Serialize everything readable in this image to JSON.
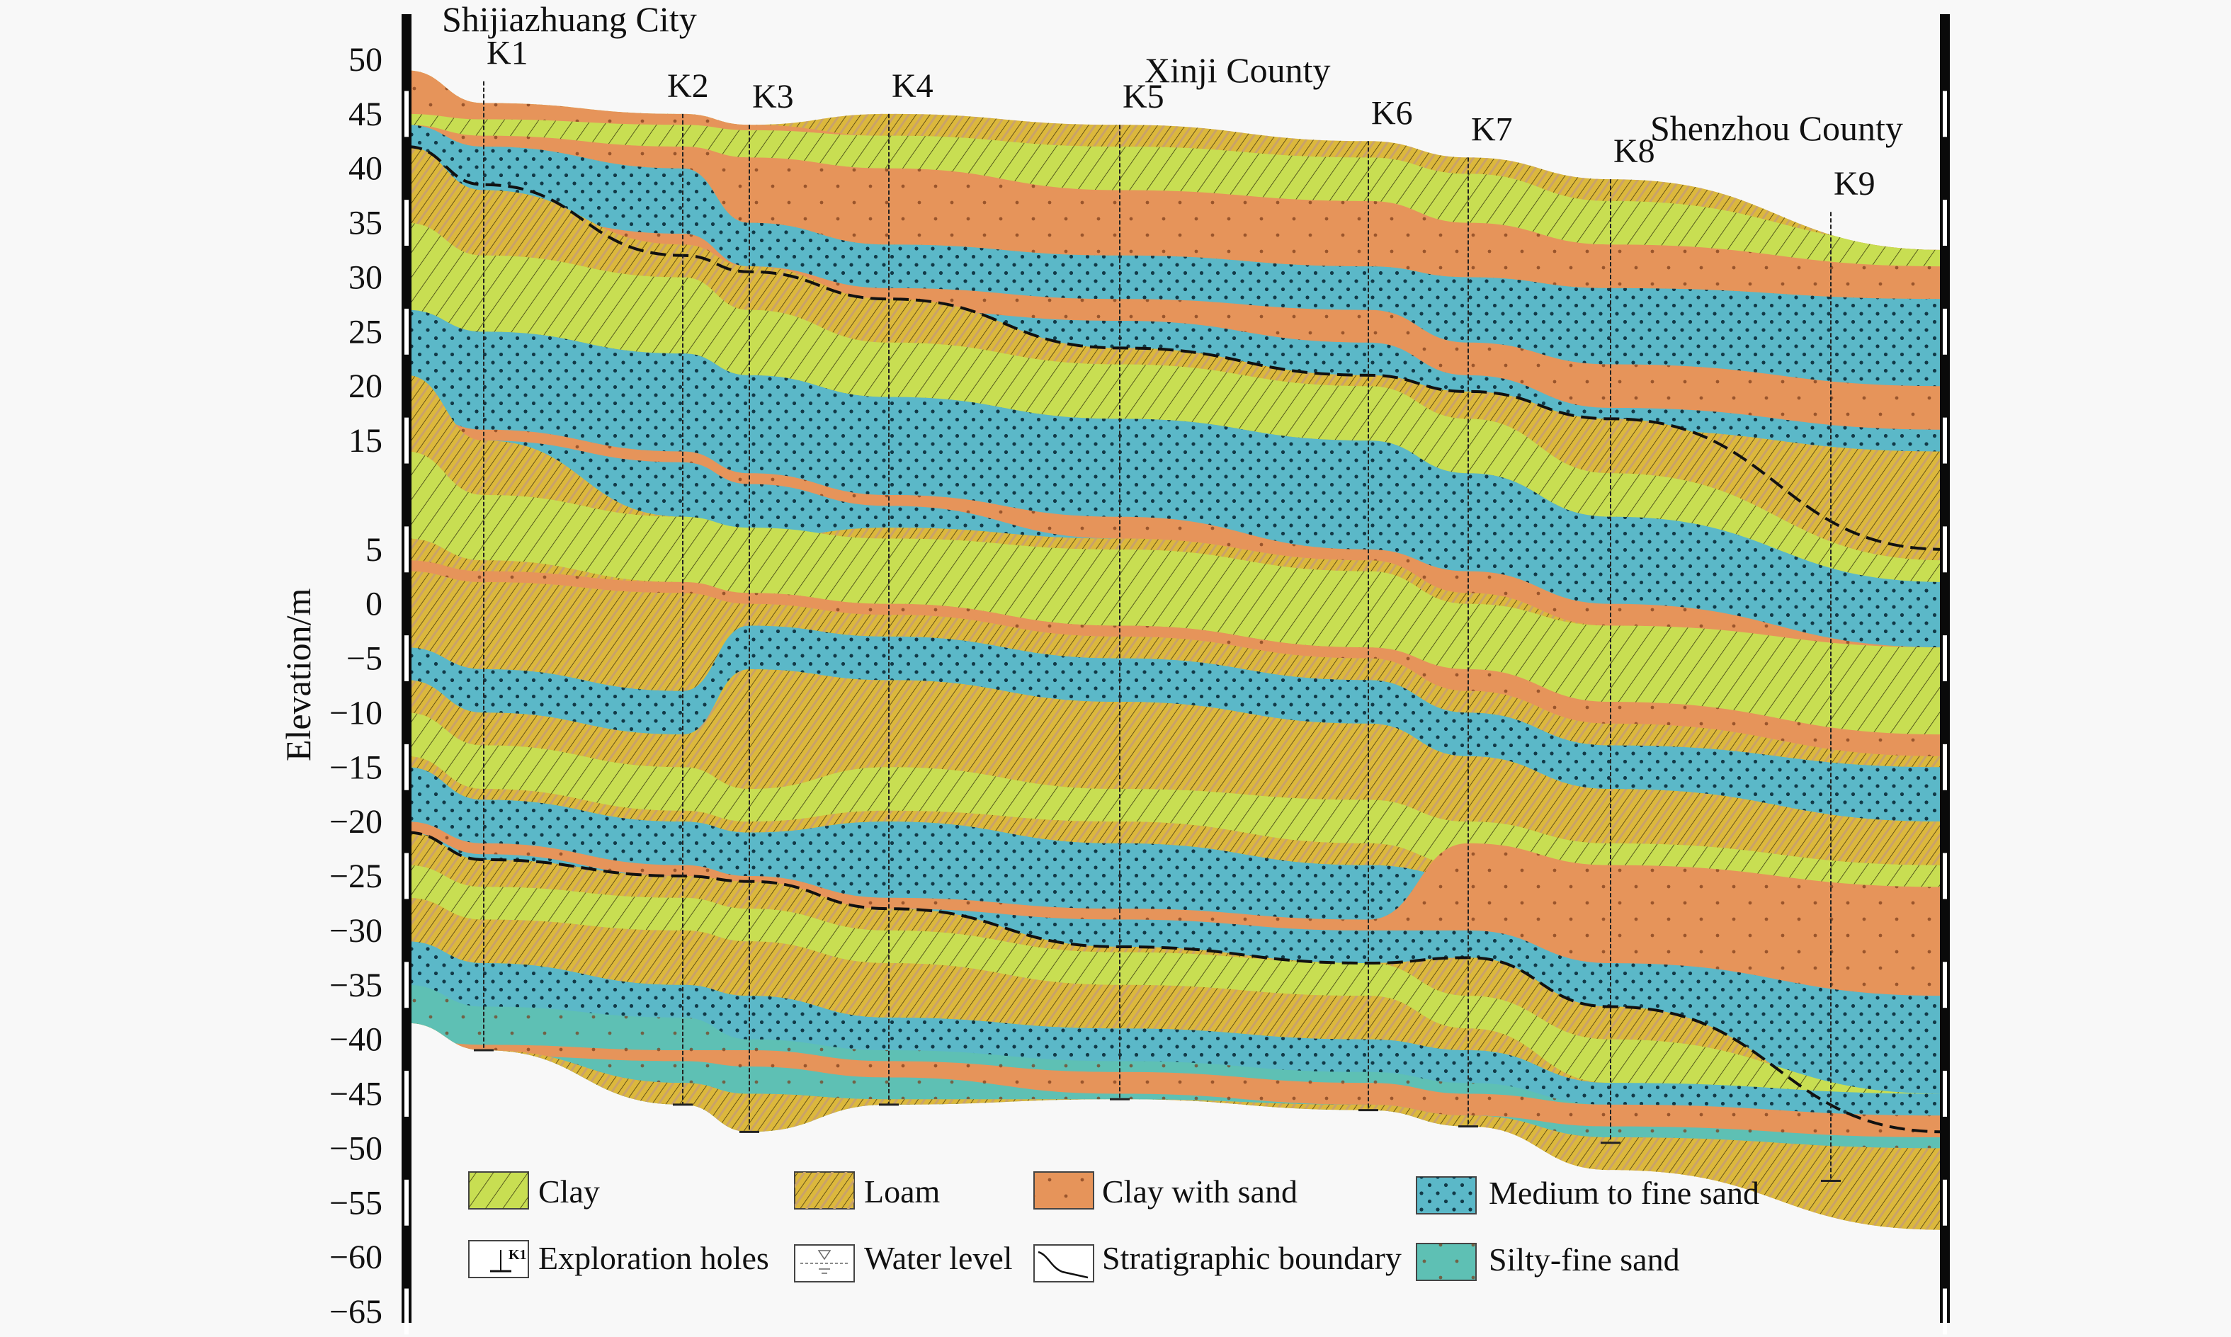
{
  "chart_data": {
    "type": "geological-cross-section",
    "title": "",
    "ylabel": "Elevation/m",
    "ylim": [
      -65,
      50
    ],
    "yticks": [
      50,
      45,
      40,
      35,
      30,
      25,
      20,
      15,
      5,
      0,
      -5,
      -10,
      -15,
      -20,
      -25,
      -30,
      -35,
      -40,
      -45,
      -50,
      -55,
      -60,
      -65
    ],
    "ytick_labels": [
      "50",
      "45",
      "40",
      "35",
      "30",
      "25",
      "20",
      "15",
      "5",
      "0",
      "−5",
      "−10",
      "−15",
      "−20",
      "−25",
      "−30",
      "−35",
      "−40",
      "−45",
      "−50",
      "−55",
      "−60",
      "−65"
    ],
    "places": [
      {
        "name": "Shijiazhuang City",
        "near": "K1"
      },
      {
        "name": "Xinji County",
        "near": "K5"
      },
      {
        "name": "Shenzhou County",
        "near": "K9"
      }
    ],
    "boreholes": [
      {
        "id": "K1",
        "top_m": 48,
        "bottom_m": -41
      },
      {
        "id": "K2",
        "top_m": 45,
        "bottom_m": -46
      },
      {
        "id": "K3",
        "top_m": 44,
        "bottom_m": -48.5
      },
      {
        "id": "K4",
        "top_m": 45,
        "bottom_m": -46
      },
      {
        "id": "K5",
        "top_m": 44,
        "bottom_m": -45.5
      },
      {
        "id": "K6",
        "top_m": 42.5,
        "bottom_m": -46.5
      },
      {
        "id": "K7",
        "top_m": 41,
        "bottom_m": -48
      },
      {
        "id": "K8",
        "top_m": 39,
        "bottom_m": -49.5
      },
      {
        "id": "K9",
        "top_m": 36,
        "bottom_m": -53
      }
    ],
    "ground_surface_m": {
      "left": 49,
      "right": 32.5
    },
    "base_m": {
      "left": -38.5,
      "right": -57.5
    },
    "stratigraphic_boundaries": [
      {
        "name": "upper",
        "elev_at_holes_m": [
          38.5,
          32,
          30.5,
          28,
          23.5,
          21,
          19.5,
          17,
          8
        ],
        "left_m": 42,
        "right_m": 5
      },
      {
        "name": "lower",
        "elev_at_holes_m": [
          -23.5,
          -25,
          -25.5,
          -28,
          -31.5,
          -33,
          -32.5,
          -37,
          -46
        ],
        "left_m": -21,
        "right_m": -48.5
      }
    ],
    "legend": [
      {
        "key": "clay",
        "label": "Clay",
        "color": "#c8de52",
        "pattern": "hatch"
      },
      {
        "key": "loam",
        "label": "Loam",
        "color": "#dcb83c",
        "pattern": "hatch-dense"
      },
      {
        "key": "clay_sand",
        "label": "Clay with sand",
        "color": "#e6945a",
        "pattern": "sparse-dots"
      },
      {
        "key": "med_sand",
        "label": "Medium to fine sand",
        "color": "#5bb8c8",
        "pattern": "dots"
      },
      {
        "key": "exploration",
        "label": "Exploration holes",
        "symbol": "K1"
      },
      {
        "key": "water",
        "label": "Water level",
        "symbol": "water-level"
      },
      {
        "key": "boundary",
        "label": "Stratigraphic boundary",
        "symbol": "line"
      },
      {
        "key": "silty_sand",
        "label": "Silty-fine sand",
        "color": "#5ec0b4",
        "pattern": "sparse-dots"
      }
    ],
    "layers": [
      {
        "type": "clay_sand",
        "top": [
          49,
          46,
          45,
          44,
          43,
          41.5,
          40,
          38,
          35.5,
          33
        ],
        "bottom": [
          44,
          42,
          40,
          35,
          33,
          32,
          31,
          30,
          29,
          28
        ]
      },
      {
        "type": "clay",
        "top": [
          45,
          44.5,
          44,
          43.5,
          43,
          42,
          41,
          39.5,
          37,
          33
        ],
        "bottom": [
          44,
          43,
          42,
          41,
          40,
          38,
          37,
          35,
          33,
          31
        ]
      },
      {
        "type": "med_sand",
        "top": [
          44,
          42,
          40,
          35,
          33,
          32,
          31,
          30,
          29,
          28
        ],
        "bottom": [
          31,
          28,
          25,
          22,
          21,
          20,
          19.5,
          18,
          16,
          14
        ]
      },
      {
        "type": "clay_sand",
        "top": [
          38,
          36,
          34,
          31,
          29,
          28,
          27,
          24,
          22,
          20
        ],
        "bottom": [
          36,
          34,
          31,
          28,
          27,
          26,
          24,
          21,
          18,
          16
        ]
      },
      {
        "type": "loam",
        "top": [
          42,
          38,
          33,
          31,
          28,
          23.5,
          21,
          19.5,
          17,
          5
        ],
        "bottom": [
          30,
          28,
          26,
          24,
          21,
          20,
          18,
          15,
          10,
          2
        ]
      },
      {
        "type": "clay",
        "top": [
          35,
          32,
          30,
          27,
          24,
          22,
          20,
          17,
          12,
          4
        ],
        "bottom": [
          27,
          25,
          23,
          21,
          19,
          17,
          15,
          12,
          8,
          0
        ]
      },
      {
        "type": "med_sand",
        "top": [
          27,
          25,
          23,
          21,
          19,
          17,
          15,
          12,
          8,
          2
        ],
        "bottom": [
          21,
          15,
          8,
          5,
          6,
          5,
          2,
          0,
          -3,
          -8
        ]
      },
      {
        "type": "clay_sand",
        "top": [
          18,
          16,
          14,
          12,
          10,
          8,
          5,
          3,
          0,
          -4
        ],
        "bottom": [
          17,
          15,
          13,
          11,
          9,
          6,
          3,
          0,
          -3,
          -7
        ]
      },
      {
        "type": "loam",
        "top": [
          21,
          15,
          8,
          6,
          7,
          6,
          4,
          1,
          -2,
          -8
        ],
        "bottom": [
          5,
          2,
          0,
          -3,
          -5,
          -6,
          -8,
          -10,
          -12,
          -15
        ]
      },
      {
        "type": "clay",
        "top": [
          14,
          10,
          8,
          7,
          6,
          5,
          3,
          0,
          -2,
          -4
        ],
        "bottom": [
          6,
          4,
          2,
          1,
          0,
          -2,
          -4,
          -7,
          -10,
          -13
        ]
      },
      {
        "type": "clay_sand",
        "top": [
          4,
          3,
          2,
          1,
          0,
          -2,
          -4,
          -6,
          -9,
          -12
        ],
        "bottom": [
          3,
          2,
          1,
          0,
          -1,
          -3,
          -5,
          -8,
          -11,
          -14
        ]
      },
      {
        "type": "med_sand",
        "top": [
          -4,
          -6,
          -8,
          -2,
          -3,
          -5,
          -7,
          -10,
          -13,
          -15
        ],
        "bottom": [
          -7,
          -10,
          -12,
          -6,
          -7,
          -9,
          -11,
          -14,
          -17,
          -20
        ]
      },
      {
        "type": "loam",
        "top": [
          -7,
          -10,
          -12,
          -14,
          -10,
          -12,
          -14,
          -16,
          -18,
          -20
        ],
        "bottom": [
          -15,
          -18,
          -20,
          -21,
          -20,
          -22,
          -24,
          -25,
          -27,
          -29
        ]
      },
      {
        "type": "clay",
        "top": [
          -10,
          -13,
          -15,
          -17,
          -15,
          -17,
          -18,
          -20,
          -22,
          -24
        ],
        "bottom": [
          -14,
          -17,
          -19,
          -20,
          -19,
          -20,
          -22,
          -24,
          -26,
          -28
        ]
      },
      {
        "type": "med_sand",
        "top": [
          -15,
          -18,
          -20,
          -21,
          -20,
          -22,
          -24,
          -25,
          -27,
          -29
        ],
        "bottom": [
          -21,
          -23.5,
          -25,
          -25.5,
          -28,
          -31.5,
          -33,
          -32.5,
          -37,
          -48.5
        ]
      },
      {
        "type": "clay_sand",
        "top": [
          -20,
          -22,
          -24,
          -25,
          -27,
          -28,
          -29,
          -22,
          -24,
          -26
        ],
        "bottom": [
          -21,
          -23,
          -25,
          -26,
          -28,
          -29,
          -30,
          -30,
          -33,
          -36
        ]
      },
      {
        "type": "loam",
        "top": [
          -21,
          -23.5,
          -25,
          -25.5,
          -28,
          -31.5,
          -33,
          -32.5,
          -37,
          -48.5
        ],
        "bottom": [
          -31,
          -33,
          -35,
          -36,
          -38,
          -39,
          -40,
          -41,
          -44,
          -57.5
        ]
      },
      {
        "type": "clay",
        "top": [
          -24,
          -26,
          -27,
          -28,
          -30,
          -32,
          -33,
          -36,
          -40,
          -45
        ],
        "bottom": [
          -27,
          -29,
          -30,
          -31,
          -33,
          -35,
          -36,
          -39,
          -44,
          -50
        ]
      },
      {
        "type": "med_sand",
        "top": [
          -31,
          -33,
          -35,
          -36,
          -38,
          -39,
          -40,
          -41,
          -44,
          -45
        ],
        "bottom": [
          -38.5,
          -43,
          -46.5,
          -48.5,
          -46,
          -45.5,
          -46.5,
          -48,
          -50,
          -51
        ]
      },
      {
        "type": "silty_sand",
        "top": [
          -35,
          -37,
          -38,
          -40,
          -41,
          -42,
          -43,
          -44,
          -46,
          -47
        ],
        "bottom": [
          -38.5,
          -41,
          -44,
          -45,
          -45.5,
          -45.5,
          -46,
          -47,
          -49,
          -50
        ]
      },
      {
        "type": "clay_sand",
        "top": [
          -40,
          -40.5,
          -41,
          -41,
          -42,
          -43,
          -44,
          -45,
          -46,
          -47
        ],
        "bottom": [
          -41,
          -41.5,
          -42,
          -42.5,
          -43.5,
          -45,
          -46,
          -47,
          -48,
          -49
        ]
      },
      {
        "type": "loam",
        "top": [
          -38.5,
          -41,
          -44,
          -45,
          -45.5,
          -45.5,
          -46,
          -47,
          -49,
          -50
        ],
        "bottom": [
          -38.5,
          -43,
          -46.5,
          -48.5,
          -46,
          -45.5,
          -46.5,
          -48,
          -52,
          -57.5
        ]
      }
    ]
  }
}
